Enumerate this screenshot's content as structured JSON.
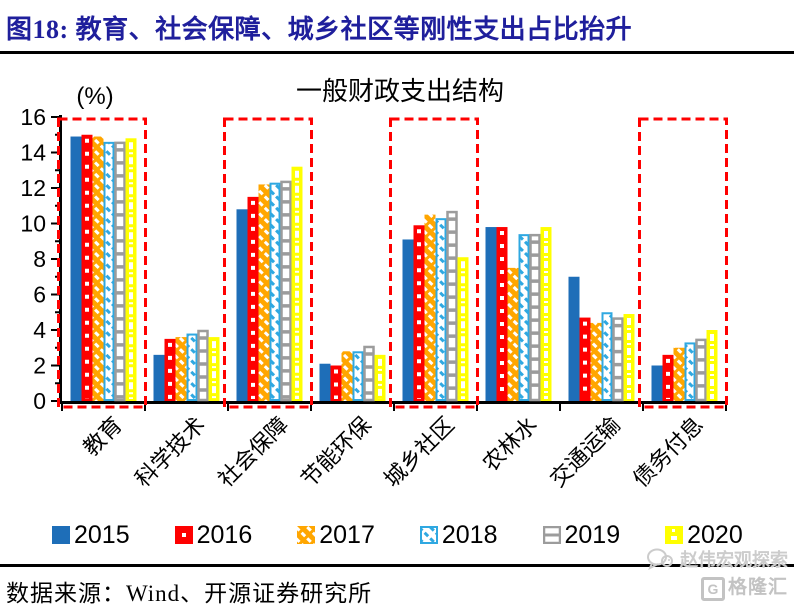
{
  "header": {
    "title": "图18:  教育、社会保障、城乡社区等刚性支出占比抬升",
    "title_color": "#1f1f9c"
  },
  "chart_data": {
    "type": "bar",
    "title": "一般财政支出结构",
    "unit_label": "(%)",
    "categories": [
      "教育",
      "科学技术",
      "社会保障",
      "节能环保",
      "城乡社区",
      "农林水",
      "交通运输",
      "债务付息"
    ],
    "series": [
      {
        "name": "2015",
        "color": "#1e6eb8",
        "pattern": "solid",
        "values": [
          14.9,
          2.6,
          10.8,
          2.1,
          9.1,
          9.8,
          7.0,
          2.0
        ]
      },
      {
        "name": "2016",
        "color": "#fe0000",
        "pattern": "white-dot-column",
        "values": [
          15.0,
          3.5,
          11.5,
          2.0,
          9.9,
          9.8,
          4.7,
          2.6
        ]
      },
      {
        "name": "2017",
        "color": "#ffa600",
        "pattern": "diagonal-dash",
        "values": [
          14.9,
          3.6,
          12.2,
          2.8,
          10.5,
          7.5,
          4.4,
          3.0
        ]
      },
      {
        "name": "2018",
        "color": "#2fa8e1",
        "pattern": "diagonal-dot-outline",
        "values": [
          14.6,
          3.8,
          12.3,
          2.8,
          10.3,
          9.4,
          5.0,
          3.3
        ]
      },
      {
        "name": "2019",
        "color": "#9c9c9c",
        "pattern": "ladder-outline",
        "values": [
          14.6,
          4.0,
          12.4,
          3.1,
          10.7,
          9.4,
          4.7,
          3.5
        ]
      },
      {
        "name": "2020",
        "color": "#ffff00",
        "pattern": "white-dashdot-column",
        "values": [
          14.8,
          3.6,
          13.2,
          2.6,
          8.1,
          9.8,
          4.9,
          4.0
        ]
      }
    ],
    "ylim": [
      0,
      16
    ],
    "yticks": [
      0,
      2,
      4,
      6,
      8,
      10,
      12,
      14,
      16
    ],
    "minor_ticks_every": 1,
    "grid": false,
    "legend_position": "bottom",
    "highlighted_categories": [
      "教育",
      "社会保障",
      "城乡社区",
      "债务付息"
    ],
    "highlight_box_color": "#ff0000"
  },
  "footer": {
    "source": "数据来源：Wind、开源证券研究所",
    "watermark": "赵伟宏观探索",
    "logo_letter": "G",
    "logo_text": "格隆汇"
  }
}
